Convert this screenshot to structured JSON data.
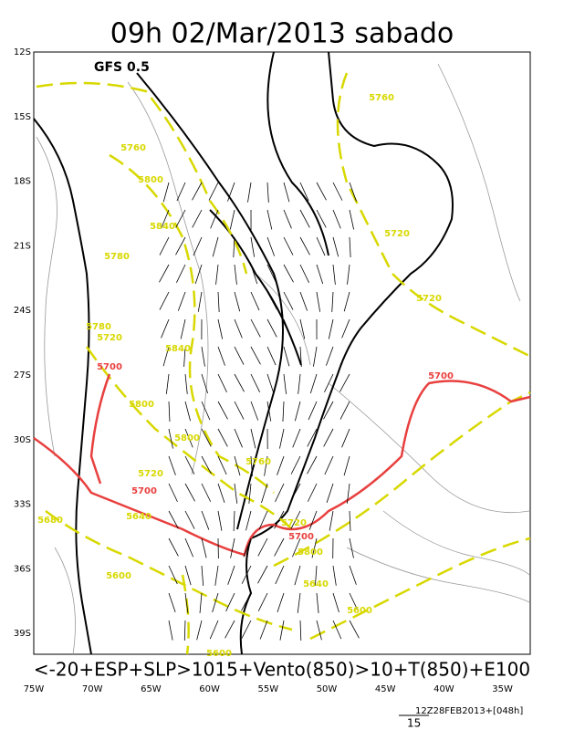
{
  "header": {
    "title": "09h 02/Mar/2013 sabado",
    "model": "GFS 0.5"
  },
  "lat_labels": [
    "12S",
    "15S",
    "18S",
    "21S",
    "24S",
    "27S",
    "30S",
    "33S",
    "36S",
    "39S"
  ],
  "lon_labels": [
    "75W",
    "70W",
    "65W",
    "60W",
    "55W",
    "50W",
    "45W",
    "40W",
    "35W"
  ],
  "caption": "<-20+ESP+SLP>1015+Vento(850)>10+T(850)+E100",
  "footer": {
    "run": "12Z28FEB2013+[048h]",
    "scale": "15"
  },
  "contour_labels": [
    {
      "text": "5760",
      "color": "#d8d800"
    },
    {
      "text": "5760",
      "color": "#d8d800"
    },
    {
      "text": "5800",
      "color": "#d8d800"
    },
    {
      "text": "5840",
      "color": "#d8d800"
    },
    {
      "text": "5780",
      "color": "#d8d800"
    },
    {
      "text": "5720",
      "color": "#d8d800"
    },
    {
      "text": "5720",
      "color": "#d8d800"
    },
    {
      "text": "5780",
      "color": "#d8d800"
    },
    {
      "text": "5720",
      "color": "#d8d800"
    },
    {
      "text": "5840",
      "color": "#d8d800"
    },
    {
      "text": "5800",
      "color": "#d8d800"
    },
    {
      "text": "5800",
      "color": "#d8d800"
    },
    {
      "text": "5760",
      "color": "#d8d800"
    },
    {
      "text": "5720",
      "color": "#d8d800"
    },
    {
      "text": "5640",
      "color": "#d8d800"
    },
    {
      "text": "5720",
      "color": "#d8d800"
    },
    {
      "text": "5800",
      "color": "#d8d800"
    },
    {
      "text": "5640",
      "color": "#d8d800"
    },
    {
      "text": "5600",
      "color": "#d8d800"
    },
    {
      "text": "5600",
      "color": "#d8d800"
    },
    {
      "text": "5600",
      "color": "#d8d800"
    },
    {
      "text": "5680",
      "color": "#d8d800"
    },
    {
      "text": "5700",
      "color": "#e8403f"
    },
    {
      "text": "5700",
      "color": "#e8403f"
    },
    {
      "text": "5700",
      "color": "#e8403f"
    },
    {
      "text": "5700",
      "color": "#e8403f"
    }
  ]
}
